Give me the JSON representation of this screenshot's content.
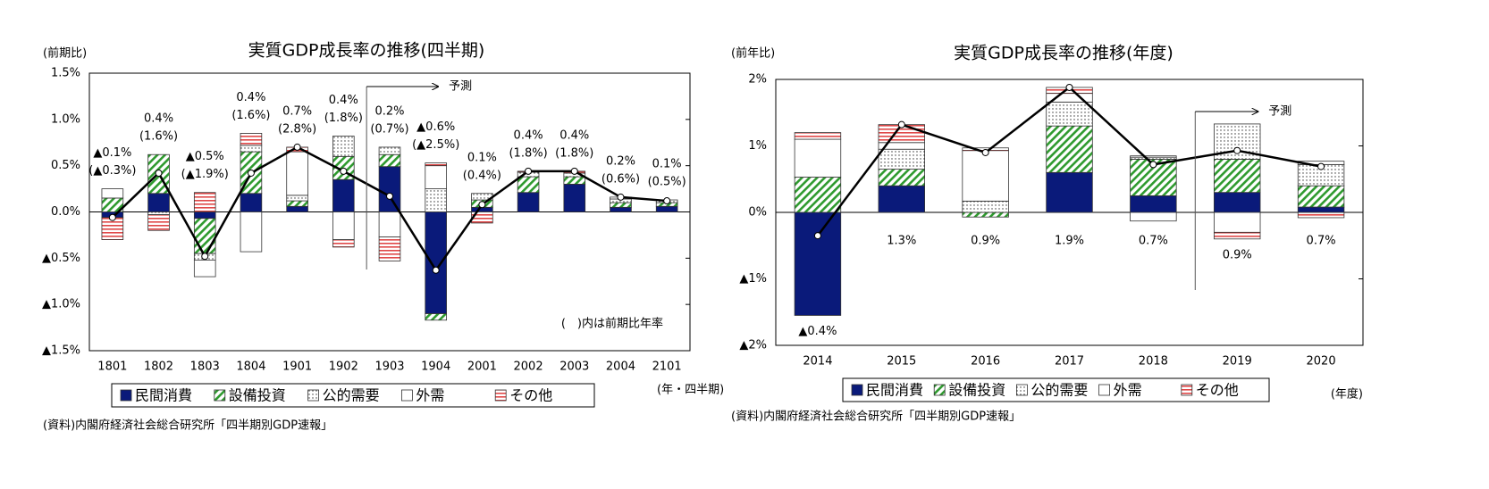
{
  "chart_data": [
    {
      "type": "bar",
      "stacked": true,
      "title": "実質GDP成長率の推移(四半期)",
      "y_unit": "(前期比)",
      "x_unit": "(年・四半期)",
      "source": "(資料)内閣府経済社会総合研究所「四半期別GDP速報」",
      "note": "(　)内は前期比年率",
      "forecast_from": "1903",
      "forecast_label": "予測",
      "legend": "bottom",
      "categories": [
        "1801",
        "1802",
        "1803",
        "1804",
        "1901",
        "1902",
        "1903",
        "1904",
        "2001",
        "2002",
        "2003",
        "2004",
        "2101"
      ],
      "series": [
        {
          "name": "民間消費",
          "color": "#0a1a7a",
          "pattern": "solid",
          "values": [
            -0.06,
            0.2,
            -0.07,
            0.2,
            0.06,
            0.35,
            0.49,
            -1.1,
            0.05,
            0.21,
            0.3,
            0.05,
            0.06
          ]
        },
        {
          "name": "設備投資",
          "color": "#2e9a2e",
          "pattern": "hatch",
          "values": [
            0.15,
            0.42,
            -0.38,
            0.45,
            0.06,
            0.25,
            0.13,
            -0.07,
            0.08,
            0.17,
            0.08,
            0.05,
            0.04
          ]
        },
        {
          "name": "公的需要",
          "color": "#333333",
          "pattern": "dots",
          "values": [
            0,
            -0.03,
            -0.07,
            0.07,
            0.06,
            0.22,
            0.08,
            0.25,
            0.07,
            0.05,
            0.04,
            0.04,
            0.03
          ]
        },
        {
          "name": "外需",
          "color": "#ffffff",
          "pattern": "none",
          "values": [
            0.1,
            0,
            -0.18,
            -0.43,
            0.47,
            -0.3,
            -0.27,
            0.25,
            0,
            0,
            0,
            0.02,
            0
          ]
        },
        {
          "name": "その他",
          "color": "#e04848",
          "pattern": "stripes",
          "values": [
            -0.24,
            -0.17,
            0.21,
            0.13,
            0.05,
            -0.08,
            -0.26,
            0.03,
            -0.12,
            0.01,
            0.02,
            0,
            0
          ]
        }
      ],
      "total": {
        "values": [
          -0.06,
          0.42,
          -0.48,
          0.42,
          0.7,
          0.44,
          0.17,
          -0.63,
          0.08,
          0.44,
          0.44,
          0.16,
          0.12
        ],
        "value_labels": [
          "▲0.1%",
          "0.4%",
          "▲0.5%",
          "0.4%",
          "0.7%",
          "0.4%",
          "0.2%",
          "▲0.6%",
          "0.1%",
          "0.4%",
          "0.4%",
          "0.2%",
          "0.1%"
        ]
      },
      "annualized": {
        "values": [
          -0.3,
          1.6,
          -1.9,
          1.6,
          2.8,
          1.8,
          0.7,
          -2.5,
          0.4,
          1.8,
          1.8,
          0.6,
          0.5
        ],
        "value_labels": [
          "(▲0.3%)",
          "(1.6%)",
          "(▲1.9%)",
          "(1.6%)",
          "(2.8%)",
          "(1.8%)",
          "(0.7%)",
          "(▲2.5%)",
          "(0.4%)",
          "(1.8%)",
          "(1.8%)",
          "(0.6%)",
          "(0.5%)"
        ]
      },
      "ylim": [
        -1.5,
        1.5
      ],
      "yticks": [
        {
          "value": 1.5,
          "label": "1.5%"
        },
        {
          "value": 1.0,
          "label": "1.0%"
        },
        {
          "value": 0.5,
          "label": "0.5%"
        },
        {
          "value": 0,
          "label": "0.0%"
        },
        {
          "value": -0.5,
          "label": "▲0.5%"
        },
        {
          "value": -1.0,
          "label": "▲1.0%"
        },
        {
          "value": -1.5,
          "label": "▲1.5%"
        }
      ]
    },
    {
      "type": "bar",
      "stacked": true,
      "title": "実質GDP成長率の推移(年度)",
      "y_unit": "(前年比)",
      "x_unit": "(年度)",
      "source": "(資料)内閣府経済社会総合研究所「四半期別GDP速報」",
      "forecast_from": "2019",
      "forecast_label": "予測",
      "legend": "bottom",
      "categories": [
        "2014",
        "2015",
        "2016",
        "2017",
        "2018",
        "2019",
        "2020"
      ],
      "series": [
        {
          "name": "民間消費",
          "color": "#0a1a7a",
          "pattern": "solid",
          "values": [
            -1.55,
            0.4,
            0,
            0.6,
            0.25,
            0.3,
            0.08
          ]
        },
        {
          "name": "設備投資",
          "color": "#2e9a2e",
          "pattern": "hatch",
          "values": [
            0.53,
            0.25,
            -0.07,
            0.7,
            0.55,
            0.5,
            0.32
          ]
        },
        {
          "name": "公的需要",
          "color": "#333333",
          "pattern": "dots",
          "values": [
            0,
            0.3,
            0.17,
            0.36,
            0.03,
            0.53,
            0.32
          ]
        },
        {
          "name": "外需",
          "color": "#ffffff",
          "pattern": "none",
          "values": [
            0.57,
            0.1,
            0.76,
            0.13,
            -0.13,
            -0.3,
            0.05
          ]
        },
        {
          "name": "その他",
          "color": "#e04848",
          "pattern": "stripes",
          "values": [
            0.1,
            0.27,
            0.04,
            0.09,
            0.02,
            -0.1,
            -0.08
          ]
        }
      ],
      "total": {
        "values": [
          -0.35,
          1.32,
          0.9,
          1.88,
          0.72,
          0.93,
          0.69
        ],
        "value_labels": [
          "▲0.4%",
          "1.3%",
          "0.9%",
          "1.9%",
          "0.7%",
          "0.9%",
          "0.7%"
        ]
      },
      "ylim": [
        -2,
        2
      ],
      "yticks": [
        {
          "value": 2,
          "label": "2%"
        },
        {
          "value": 1,
          "label": "1%"
        },
        {
          "value": 0,
          "label": "0%"
        },
        {
          "value": -1,
          "label": "▲1%"
        },
        {
          "value": -2,
          "label": "▲2%"
        }
      ]
    }
  ]
}
